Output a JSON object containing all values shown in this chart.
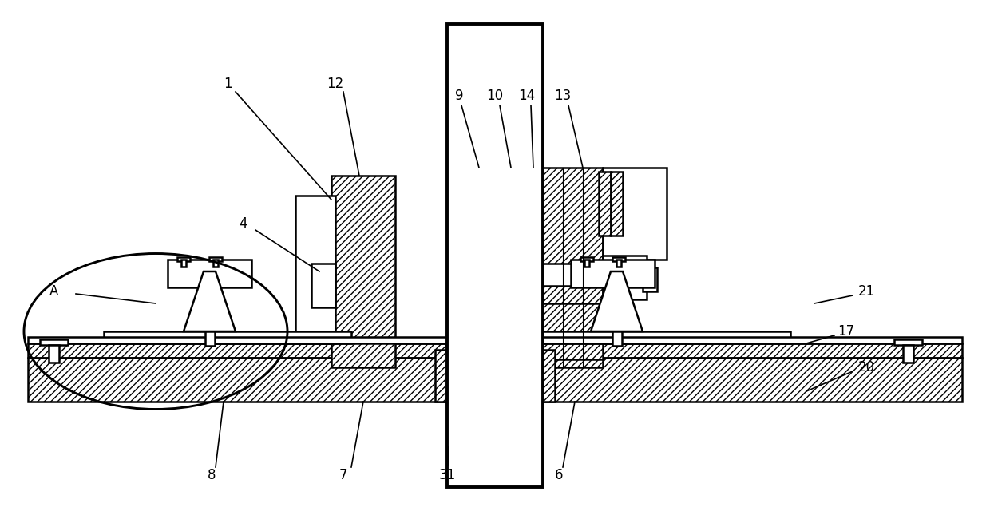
{
  "bg_color": "#ffffff",
  "line_color": "#000000",
  "lw": 1.8,
  "label_fontsize": 12,
  "fig_w": 12.4,
  "fig_h": 6.65,
  "dpi": 100
}
